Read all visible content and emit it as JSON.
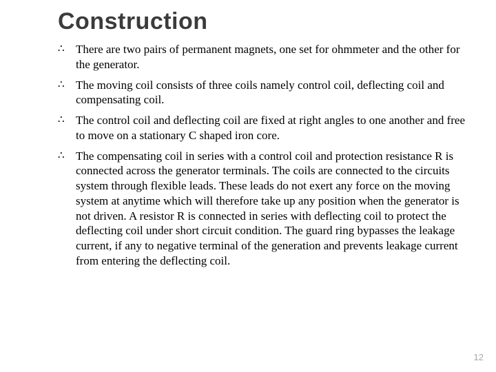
{
  "slide": {
    "title": "Construction",
    "title_color": "#3b3b3b",
    "title_fontsize": 34,
    "body_fontsize": 17,
    "background_color": "#ffffff",
    "text_color": "#000000",
    "bullet_glyph": "∴",
    "bullets": [
      "There are two pairs of permanent magnets, one set for ohmmeter and the other for the generator.",
      "The moving coil consists of three coils namely control coil, deflecting coil and compensating coil.",
      "The control coil and deflecting coil are fixed at right angles to one another and free to move on a stationary C shaped iron core.",
      "The compensating coil in series with a control coil and protection resistance R is connected across the generator terminals. The coils are connected to the circuits system through flexible leads. These leads do not exert any force on the moving system at anytime which will therefore take up any position when the generator is not driven. A resistor R is connected in series with deflecting coil to protect the deflecting coil under short circuit condition. The guard ring bypasses the leakage current, if any to negative terminal of the generation and prevents leakage current from entering the deflecting coil."
    ],
    "page_number": "12",
    "page_number_color": "#a7a7a7"
  }
}
